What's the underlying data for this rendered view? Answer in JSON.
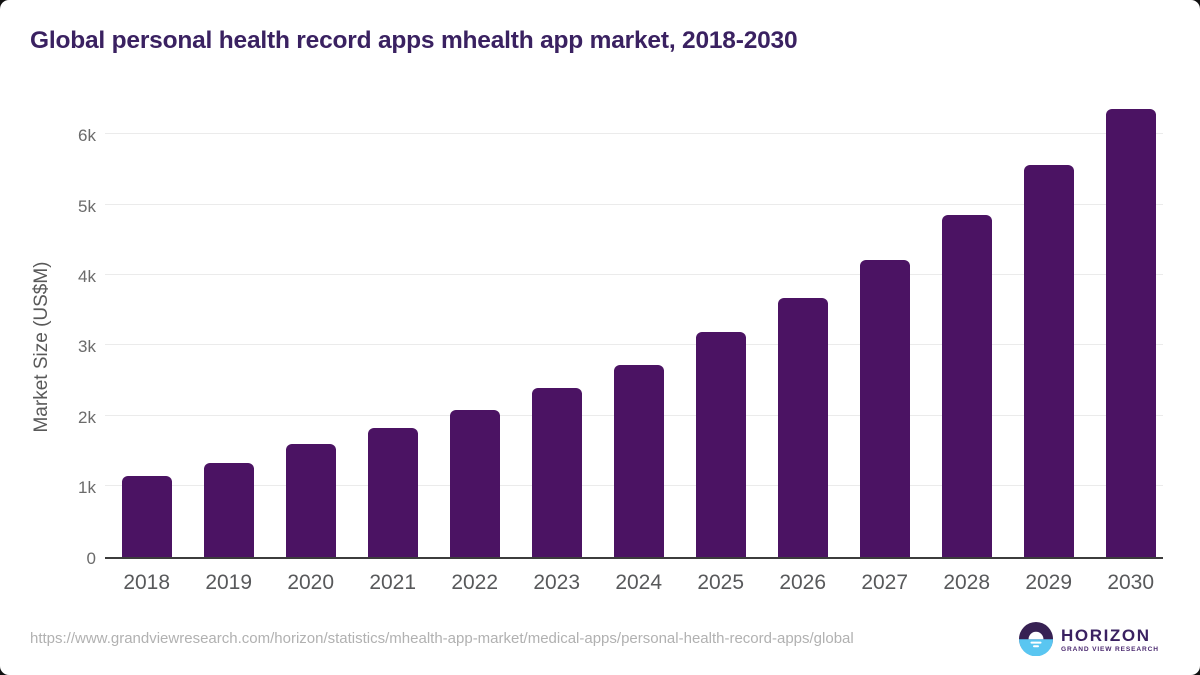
{
  "title": "Global personal health record apps mhealth app market, 2018-2030",
  "footer": {
    "source_url": "https://www.grandviewresearch.com/horizon/statistics/mhealth-app-market/medical-apps/personal-health-record-apps/global"
  },
  "logo": {
    "name": "HORIZON",
    "subtext": "GRAND VIEW RESEARCH"
  },
  "colors": {
    "bar": "#4b1363",
    "title_text": "#3a2161",
    "grid": "#ebebeb",
    "baseline": "#3c3c3c",
    "axis_tick_text": "#6b6b6b",
    "x_tick_text": "#58595b",
    "url_text": "#b1b1b1",
    "logo_purple": "#372153",
    "logo_blue": "#5ac6f1"
  },
  "chart_data": {
    "type": "bar",
    "title": "Global personal health record apps mhealth app market, 2018-2030",
    "categories": [
      "2018",
      "2019",
      "2020",
      "2021",
      "2022",
      "2023",
      "2024",
      "2025",
      "2026",
      "2027",
      "2028",
      "2029",
      "2030"
    ],
    "values": [
      1150,
      1330,
      1600,
      1825,
      2075,
      2400,
      2715,
      3185,
      3670,
      4205,
      4850,
      5555,
      6350
    ],
    "xlabel": "",
    "ylabel": "Market Size (US$M)",
    "ylim": [
      0,
      6500
    ],
    "ytick_values": [
      0,
      1000,
      2000,
      3000,
      4000,
      5000,
      6000
    ],
    "ytick_labels": [
      "0",
      "1k",
      "2k",
      "3k",
      "4k",
      "5k",
      "6k"
    ],
    "grid": "horizontal",
    "legend": false,
    "bar_color": "#4b1363"
  }
}
